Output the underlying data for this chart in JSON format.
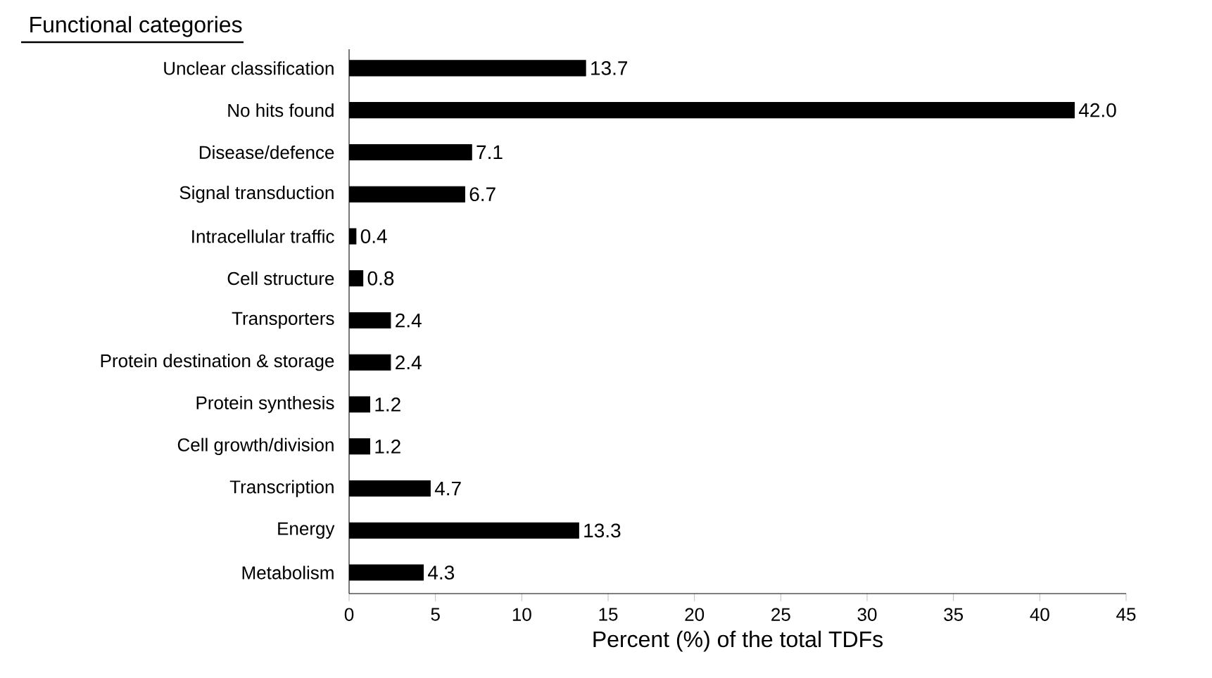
{
  "chart_data": {
    "type": "bar",
    "orientation": "horizontal",
    "ylabel": "Functional categories",
    "xlabel": "Percent (%) of the total TDFs",
    "categories": [
      "Unclear classification",
      "No hits found",
      "Disease/defence",
      "Signal transduction",
      "Intracellular traffic",
      "Cell structure",
      "Transporters",
      "Protein destination & storage",
      "Protein synthesis",
      "Cell growth/division",
      "Transcription",
      "Energy",
      "Metabolism"
    ],
    "values": [
      13.7,
      42.0,
      7.1,
      6.7,
      0.4,
      0.8,
      2.4,
      2.4,
      1.2,
      1.2,
      4.7,
      13.3,
      4.3
    ],
    "value_labels": [
      "13.7",
      "42.0",
      "7.1",
      "6.7",
      "0.4",
      "0.8",
      "2.4",
      "2.4",
      "1.2",
      "1.2",
      "4.7",
      "13.3",
      "4.3"
    ],
    "color": "#000000",
    "xlim": [
      0,
      45
    ],
    "xticks": [
      0,
      5,
      10,
      15,
      20,
      25,
      30,
      35,
      40,
      45
    ]
  }
}
